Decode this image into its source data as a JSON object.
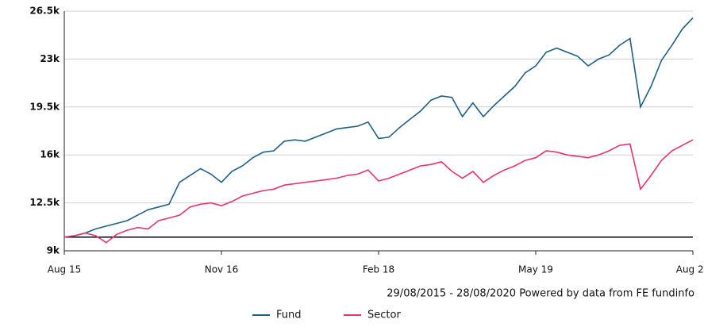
{
  "chart_data": {
    "type": "line",
    "categories": [
      "Aug 15",
      null,
      null,
      null,
      null,
      null,
      null,
      null,
      null,
      null,
      null,
      null,
      null,
      null,
      null,
      "Nov 16",
      null,
      null,
      null,
      null,
      null,
      null,
      null,
      null,
      null,
      null,
      null,
      null,
      null,
      null,
      "Feb 18",
      null,
      null,
      null,
      null,
      null,
      null,
      null,
      null,
      null,
      null,
      null,
      null,
      null,
      null,
      "May 19",
      null,
      null,
      null,
      null,
      null,
      null,
      null,
      null,
      null,
      null,
      null,
      null,
      null,
      null,
      "Aug 20"
    ],
    "series": [
      {
        "name": "Fund",
        "color": "#1f5f85",
        "values": [
          10000,
          10100,
          10300,
          10600,
          10800,
          11000,
          11200,
          11600,
          12000,
          12200,
          12400,
          14000,
          14500,
          15000,
          14600,
          14000,
          14800,
          15200,
          15800,
          16200,
          16300,
          17000,
          17100,
          17000,
          17300,
          17600,
          17900,
          18000,
          18100,
          18400,
          17200,
          17300,
          18000,
          18600,
          19200,
          20000,
          20300,
          20200,
          18800,
          19800,
          18800,
          19600,
          20300,
          21000,
          22000,
          22500,
          23500,
          23800,
          23500,
          23200,
          22500,
          23000,
          23300,
          24000,
          24500,
          19500,
          21000,
          22900,
          24000,
          25200,
          26000
        ]
      },
      {
        "name": "Sector",
        "color": "#e8336e",
        "values": [
          10000,
          10100,
          10300,
          10100,
          9600,
          10200,
          10500,
          10700,
          10600,
          11200,
          11400,
          11600,
          12200,
          12400,
          12500,
          12300,
          12600,
          13000,
          13200,
          13400,
          13500,
          13800,
          13900,
          14000,
          14100,
          14200,
          14300,
          14500,
          14600,
          14900,
          14100,
          14300,
          14600,
          14900,
          15200,
          15300,
          15500,
          14800,
          14300,
          14800,
          14000,
          14500,
          14900,
          15200,
          15600,
          15800,
          16300,
          16200,
          16000,
          15900,
          15800,
          16000,
          16300,
          16700,
          16800,
          13500,
          14500,
          15600,
          16300,
          16700,
          17100
        ]
      }
    ],
    "ylim": [
      9000,
      26500
    ],
    "yticks": [
      {
        "value": 9000,
        "label": "9k"
      },
      {
        "value": 12500,
        "label": "12.5k"
      },
      {
        "value": 16000,
        "label": "16k"
      },
      {
        "value": 19500,
        "label": "19.5k"
      },
      {
        "value": 23000,
        "label": "23k"
      },
      {
        "value": 26500,
        "label": "26.5k"
      }
    ],
    "reference_line": 10000,
    "grid": true,
    "source": "29/08/2015 - 28/08/2020 Powered by data from FE fundinfo"
  }
}
